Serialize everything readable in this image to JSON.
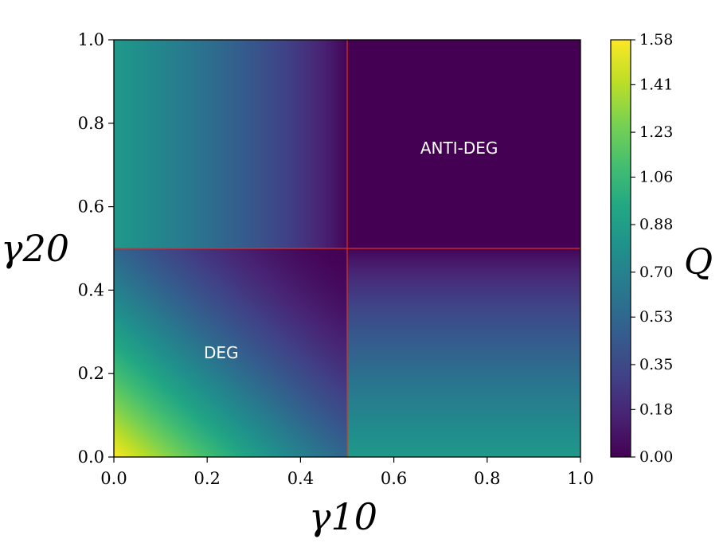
{
  "chart_data": {
    "type": "heatmap",
    "title": "",
    "xlabel": "γ10",
    "ylabel": "γ20",
    "xlim": [
      0.0,
      1.0
    ],
    "ylim": [
      0.0,
      1.0
    ],
    "x_ticks": [
      "0.0",
      "0.2",
      "0.4",
      "0.6",
      "0.8",
      "1.0"
    ],
    "y_ticks": [
      "0.0",
      "0.2",
      "0.4",
      "0.6",
      "0.8",
      "1.0"
    ],
    "colorbar": {
      "label": "Q",
      "range": [
        0.0,
        1.58
      ],
      "ticks": [
        "0.00",
        "0.18",
        "0.35",
        "0.53",
        "0.70",
        "0.88",
        "1.06",
        "1.23",
        "1.41",
        "1.58"
      ],
      "colormap": "viridis"
    },
    "divider_lines": {
      "color": "#e03020",
      "vertical_x": 0.5,
      "horizontal_y": 0.5
    },
    "regions": [
      {
        "label": "DEG",
        "x": 0.23,
        "y": 0.25
      },
      {
        "label": "ANTI-DEG",
        "x": 0.74,
        "y": 0.74
      }
    ],
    "grid": false,
    "legend": "none"
  }
}
